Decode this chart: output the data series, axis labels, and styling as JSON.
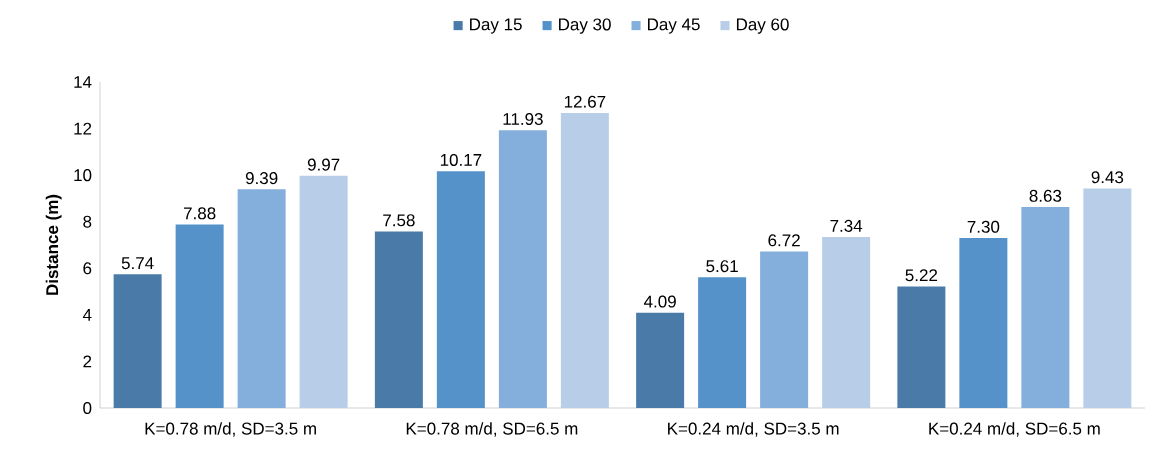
{
  "chart_data": {
    "type": "bar",
    "ylabel": "Distance (m)",
    "categories": [
      "K=0.78 m/d, SD=3.5 m",
      "K=0.78 m/d, SD=6.5 m",
      "K=0.24 m/d, SD=3.5 m",
      "K=0.24 m/d, SD=6.5 m"
    ],
    "series": [
      {
        "name": "Day 15",
        "color": "#4a7ba8",
        "values": [
          5.74,
          7.58,
          4.09,
          5.22
        ],
        "value_labels": [
          "5.74",
          "7.58",
          "4.09",
          "5.22"
        ]
      },
      {
        "name": "Day 30",
        "color": "#5592c9",
        "values": [
          7.88,
          10.17,
          5.61,
          7.3
        ],
        "value_labels": [
          "7.88",
          "10.17",
          "5.61",
          "7.30"
        ]
      },
      {
        "name": "Day 45",
        "color": "#84aedb",
        "values": [
          9.39,
          11.93,
          6.72,
          8.63
        ],
        "value_labels": [
          "9.39",
          "11.93",
          "6.72",
          "8.63"
        ]
      },
      {
        "name": "Day 60",
        "color": "#b8cde8",
        "values": [
          9.97,
          12.67,
          7.34,
          9.43
        ],
        "value_labels": [
          "9.97",
          "12.67",
          "7.34",
          "9.43"
        ]
      }
    ],
    "ylim": [
      0,
      14
    ],
    "yticks": [
      0,
      2,
      4,
      6,
      8,
      10,
      12,
      14
    ],
    "legend": "top"
  }
}
